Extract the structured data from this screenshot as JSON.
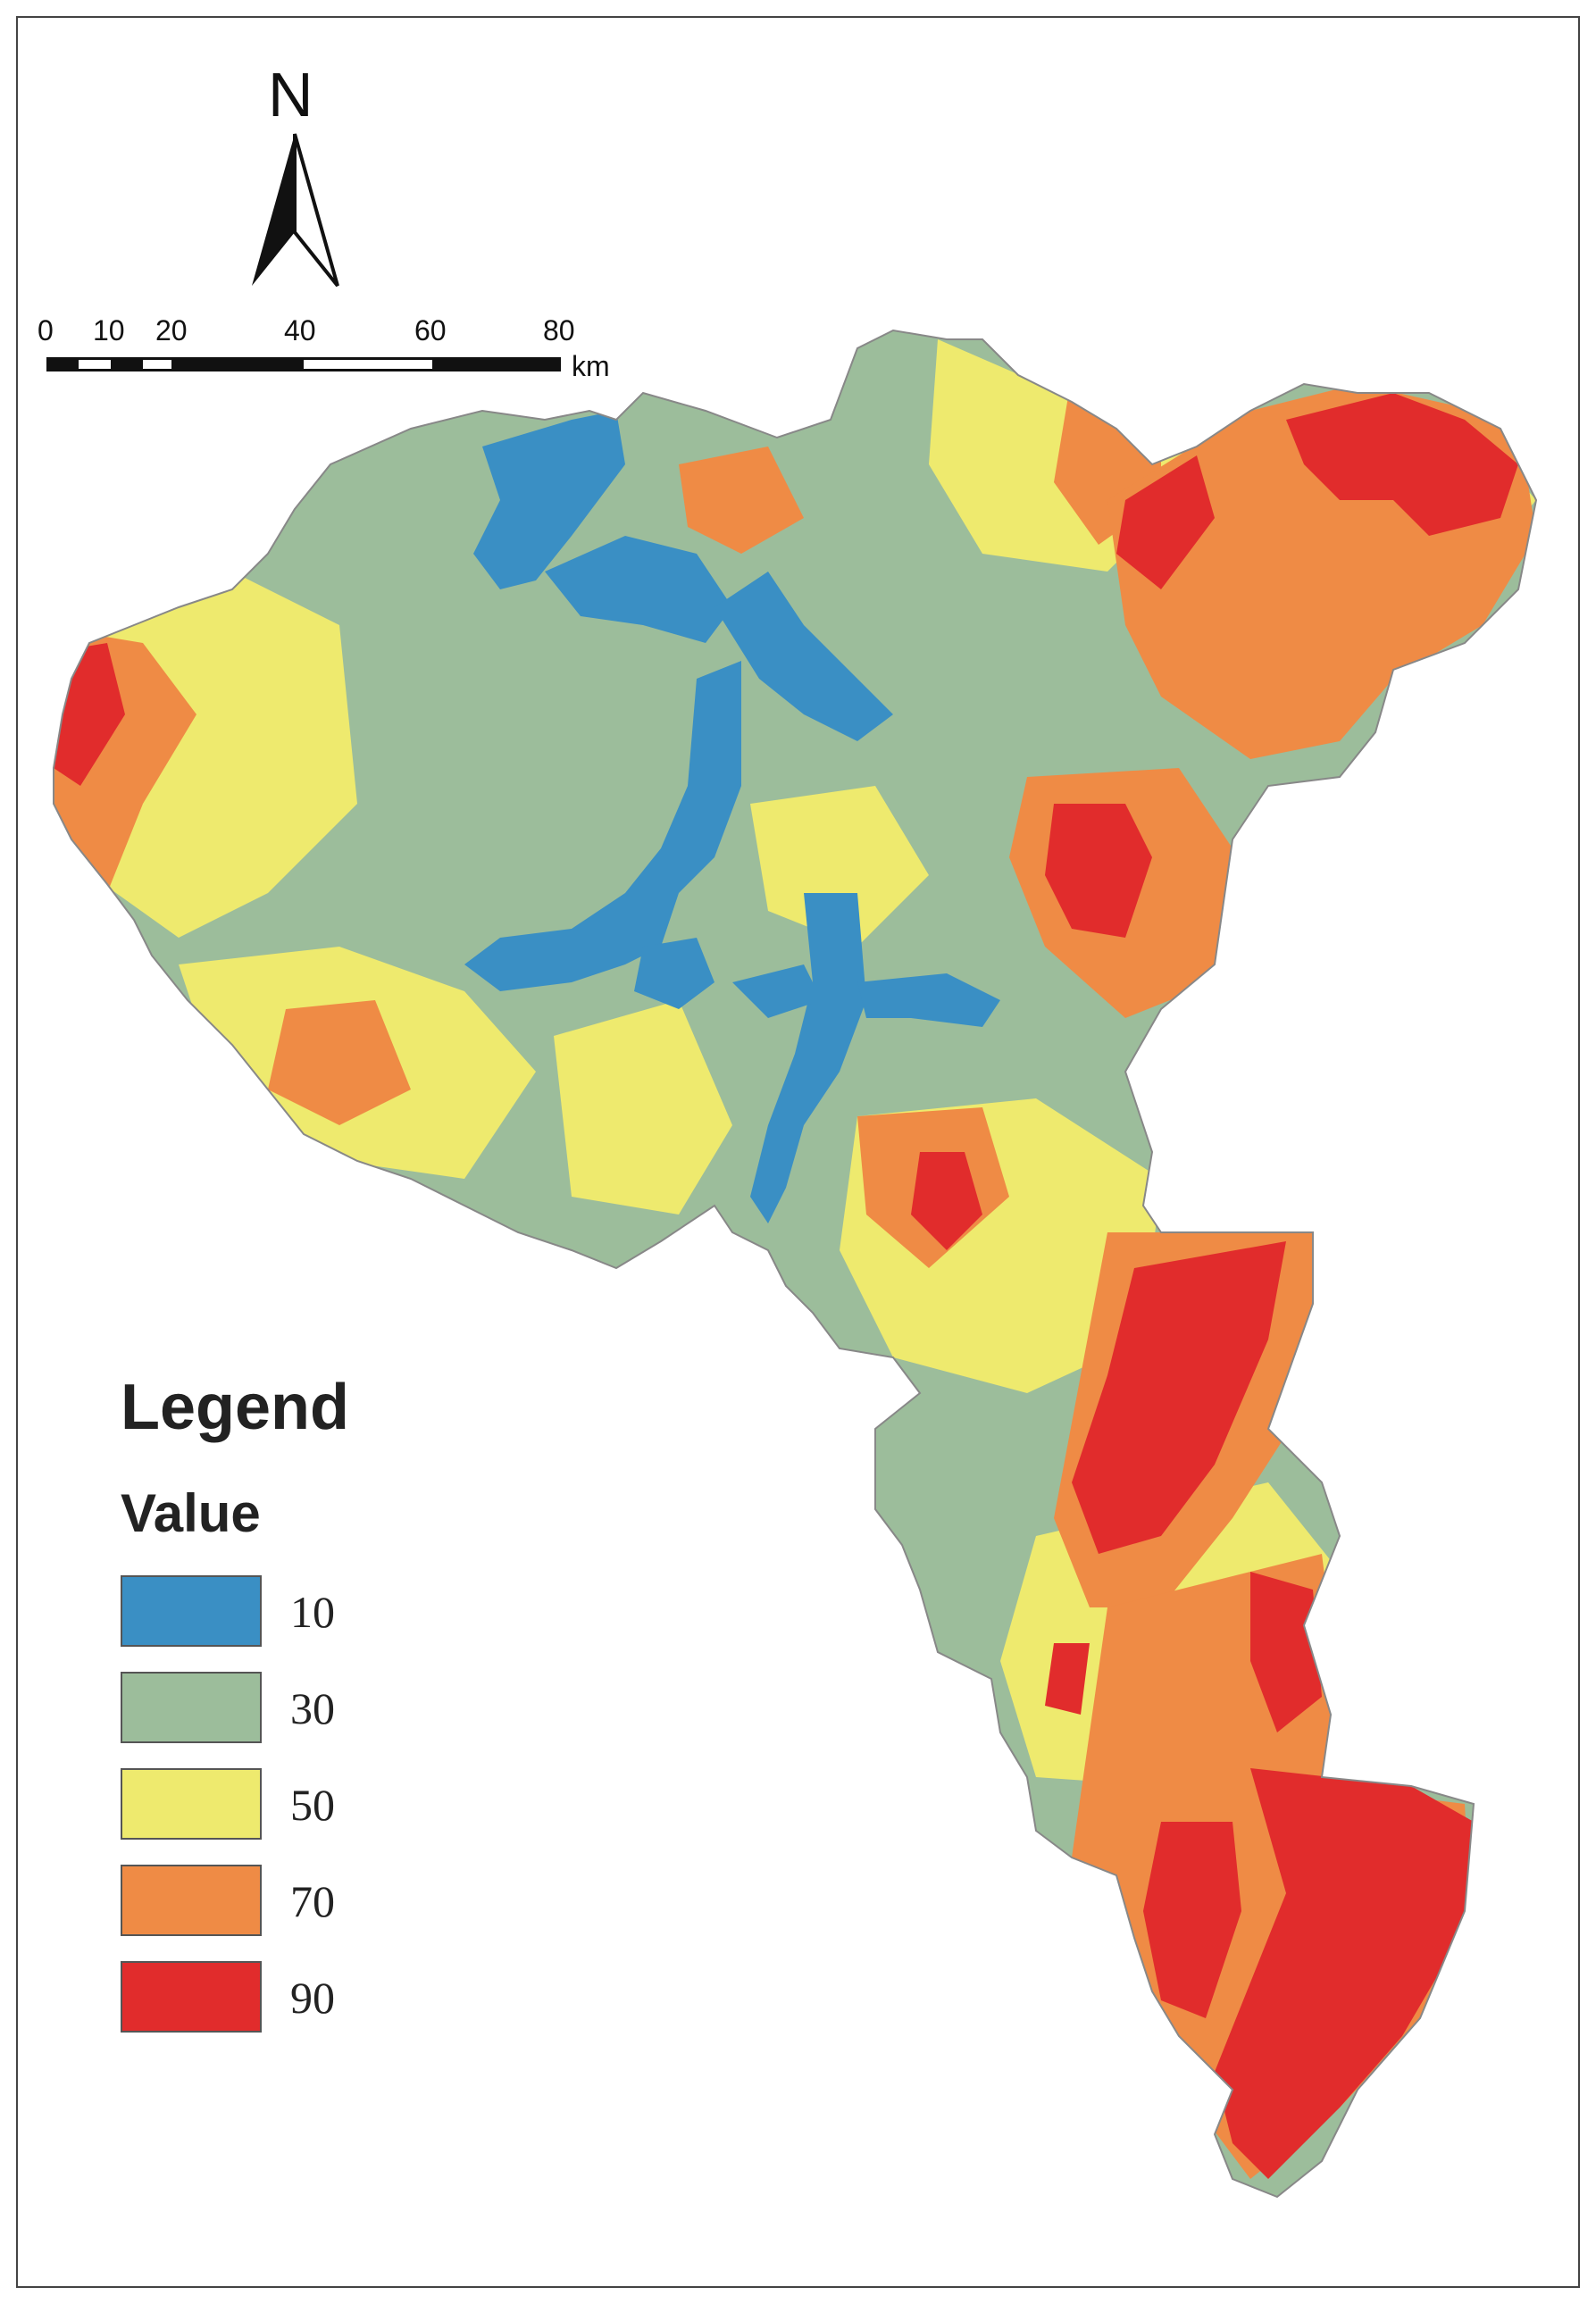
{
  "north_arrow": {
    "label": "N"
  },
  "scale_bar": {
    "ticks": [
      "0",
      "10",
      "20",
      "40",
      "60",
      "80"
    ],
    "unit": "km"
  },
  "legend": {
    "title": "Legend",
    "subtitle": "Value",
    "items": [
      {
        "label": "10",
        "color": "#3a8fc4"
      },
      {
        "label": "30",
        "color": "#9cbd9b"
      },
      {
        "label": "50",
        "color": "#eeea6e"
      },
      {
        "label": "70",
        "color": "#ef8b45"
      },
      {
        "label": "90",
        "color": "#e12c2c"
      }
    ]
  },
  "map_colors": {
    "blue": "#3a8fc4",
    "green": "#9cbd9b",
    "yellow": "#eeea6e",
    "orange": "#ef8b45",
    "red": "#e12c2c"
  }
}
